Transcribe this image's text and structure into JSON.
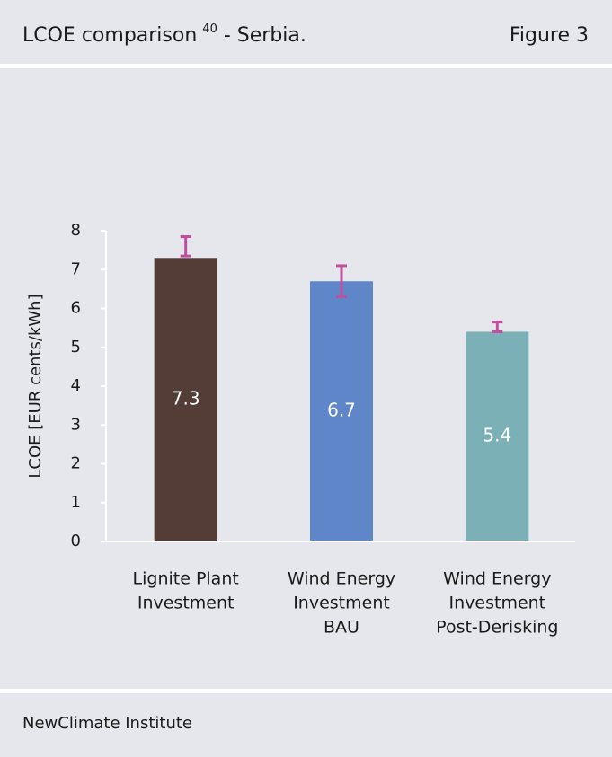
{
  "header": {
    "title": "LCOE comparison",
    "title_superscript": "40",
    "title_suffix": " - Serbia.",
    "figure": "Figure 3"
  },
  "footer": {
    "source": "NewClimate Institute"
  },
  "chart_data": {
    "type": "bar",
    "ylabel": "LCOE [EUR cents/kWh]",
    "categories": [
      [
        "Lignite Plant",
        "Investment"
      ],
      [
        "Wind Energy",
        "Investment",
        "BAU"
      ],
      [
        "Wind Energy",
        "Investment",
        "Post-Derisking"
      ]
    ],
    "values": [
      7.3,
      6.7,
      5.4
    ],
    "colors": [
      "#533d36",
      "#5f86c9",
      "#7bb0b6"
    ],
    "error_bars": {
      "color": "#c0509e",
      "low": [
        7.35,
        6.3,
        5.4
      ],
      "high": [
        7.85,
        7.1,
        5.65
      ]
    },
    "ylim": [
      0,
      8
    ],
    "yticks": [
      0,
      1,
      2,
      3,
      4,
      5,
      6,
      7,
      8
    ],
    "grid": false
  }
}
